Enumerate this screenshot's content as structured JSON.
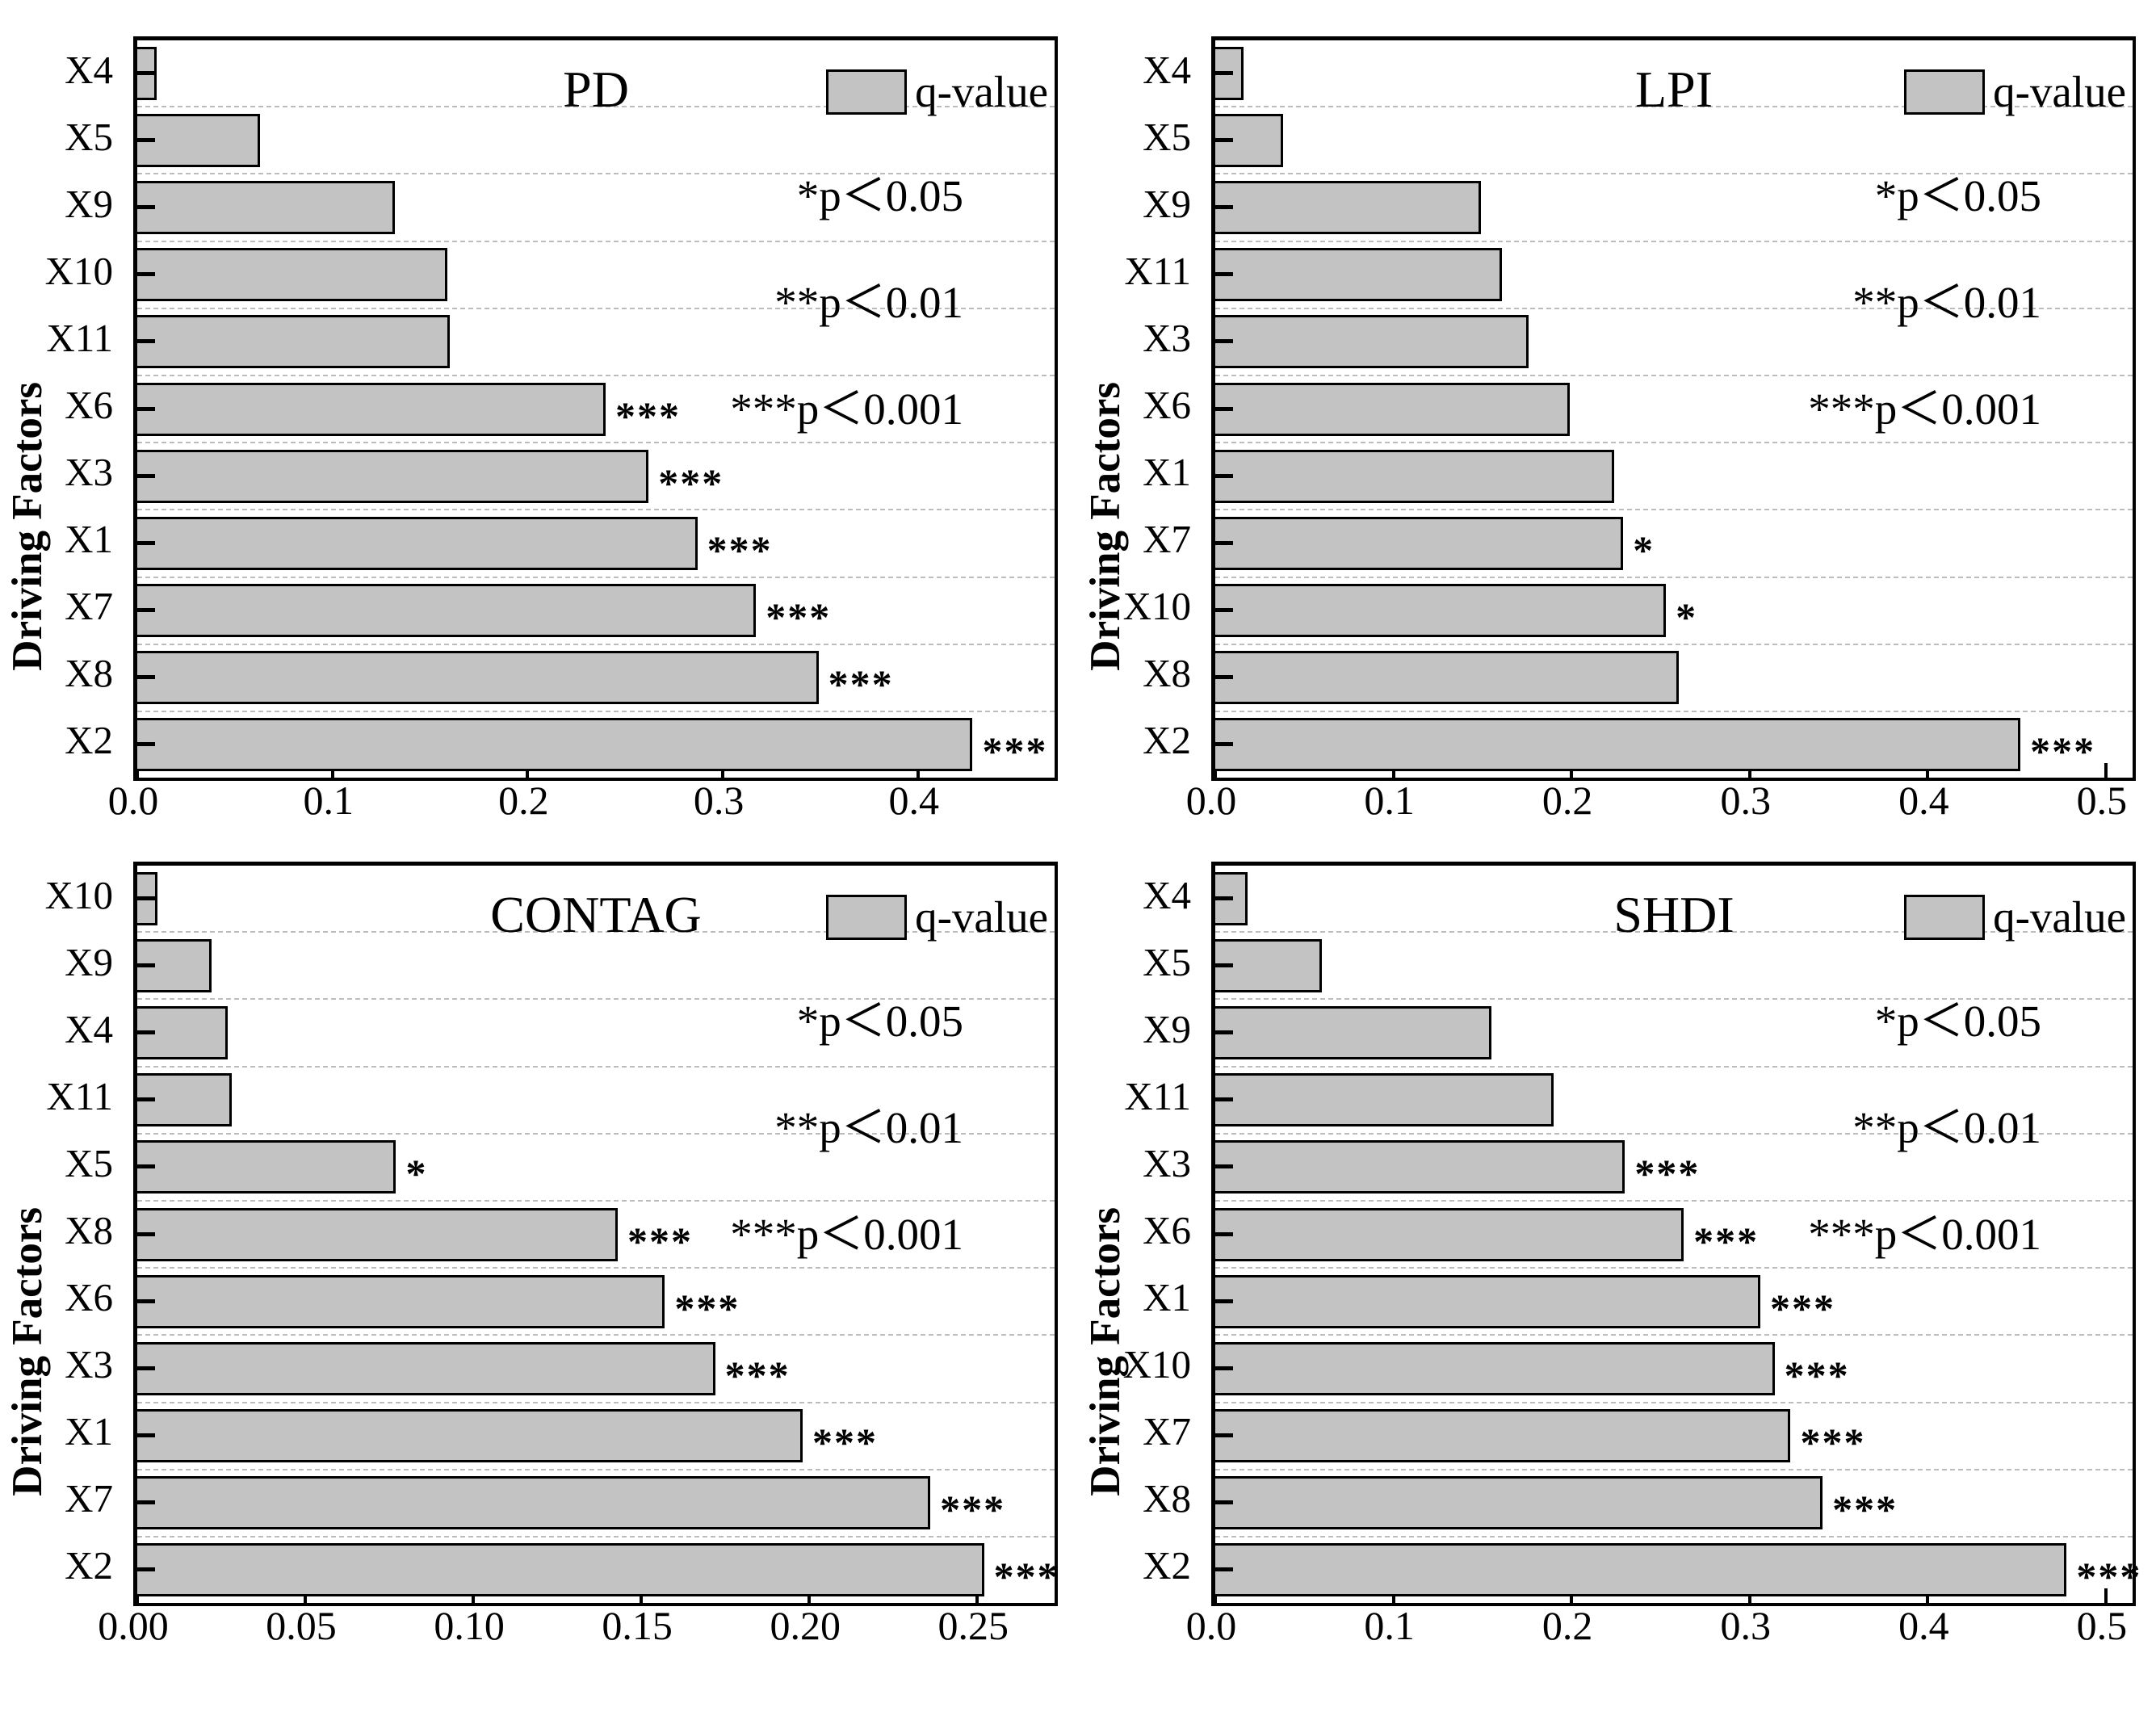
{
  "figure": {
    "y_axis_title": "Driving Factors",
    "legend": {
      "swatch_label": "q-value",
      "sig_levels": [
        "*p＜0.05",
        "**p＜0.01",
        "***p＜0.001"
      ]
    },
    "colors": {
      "bar_fill": "#c3c3c3",
      "bar_border": "#000000",
      "gridline": "#bcbcbc",
      "background": "#ffffff",
      "text": "#000000"
    }
  },
  "chart_data": [
    {
      "type": "bar",
      "orientation": "horizontal",
      "title": "PD",
      "ylabel": "Driving Factors",
      "legend_entry": "q-value",
      "grid": "dashed horizontal at category boundaries",
      "categories": [
        "X4",
        "X5",
        "X9",
        "X10",
        "X11",
        "X6",
        "X3",
        "X1",
        "X7",
        "X8",
        "X2"
      ],
      "values": [
        0.01,
        0.063,
        0.132,
        0.159,
        0.16,
        0.24,
        0.262,
        0.287,
        0.317,
        0.349,
        0.428
      ],
      "significance": [
        "",
        "",
        "",
        "",
        "",
        "***",
        "***",
        "***",
        "***",
        "***",
        "***"
      ],
      "xlim": [
        0,
        0.47
      ],
      "xticks": [
        0.0,
        0.1,
        0.2,
        0.3,
        0.4
      ],
      "xtick_labels": [
        "0.0",
        "0.1",
        "0.2",
        "0.3",
        "0.4"
      ]
    },
    {
      "type": "bar",
      "orientation": "horizontal",
      "title": "LPI",
      "ylabel": "Driving Factors",
      "legend_entry": "q-value",
      "grid": "dashed horizontal at category boundaries",
      "categories": [
        "X4",
        "X5",
        "X9",
        "X11",
        "X3",
        "X6",
        "X1",
        "X7",
        "X10",
        "X8",
        "X2"
      ],
      "values": [
        0.016,
        0.038,
        0.149,
        0.161,
        0.176,
        0.199,
        0.224,
        0.229,
        0.253,
        0.26,
        0.452
      ],
      "significance": [
        "",
        "",
        "",
        "",
        "",
        "",
        "",
        "*",
        "*",
        "",
        "***"
      ],
      "xlim": [
        0,
        0.515
      ],
      "xticks": [
        0.0,
        0.1,
        0.2,
        0.3,
        0.4,
        0.5
      ],
      "xtick_labels": [
        "0.0",
        "0.1",
        "0.2",
        "0.3",
        "0.4",
        "0.5"
      ]
    },
    {
      "type": "bar",
      "orientation": "horizontal",
      "title": "CONTAG",
      "ylabel": "Driving Factors",
      "legend_entry": "q-value",
      "grid": "dashed horizontal at category boundaries",
      "categories": [
        "X10",
        "X9",
        "X4",
        "X11",
        "X5",
        "X8",
        "X6",
        "X3",
        "X1",
        "X7",
        "X2"
      ],
      "values": [
        0.006,
        0.022,
        0.027,
        0.028,
        0.077,
        0.143,
        0.157,
        0.172,
        0.198,
        0.236,
        0.252
      ],
      "significance": [
        "",
        "",
        "",
        "",
        "*",
        "***",
        "***",
        "***",
        "***",
        "***",
        "***"
      ],
      "xlim": [
        0,
        0.273
      ],
      "xticks": [
        0.0,
        0.05,
        0.1,
        0.15,
        0.2,
        0.25
      ],
      "xtick_labels": [
        "0.00",
        "0.05",
        "0.10",
        "0.15",
        "0.20",
        "0.25"
      ]
    },
    {
      "type": "bar",
      "orientation": "horizontal",
      "title": "SHDI",
      "ylabel": "Driving Factors",
      "legend_entry": "q-value",
      "grid": "dashed horizontal at category boundaries",
      "categories": [
        "X4",
        "X5",
        "X9",
        "X11",
        "X3",
        "X6",
        "X1",
        "X10",
        "X7",
        "X8",
        "X2"
      ],
      "values": [
        0.018,
        0.06,
        0.155,
        0.19,
        0.23,
        0.263,
        0.306,
        0.314,
        0.323,
        0.341,
        0.478
      ],
      "significance": [
        "",
        "",
        "",
        "",
        "***",
        "***",
        "***",
        "***",
        "***",
        "***",
        "***"
      ],
      "xlim": [
        0,
        0.515
      ],
      "xticks": [
        0.0,
        0.1,
        0.2,
        0.3,
        0.4,
        0.5
      ],
      "xtick_labels": [
        "0.0",
        "0.1",
        "0.2",
        "0.3",
        "0.4",
        "0.5"
      ]
    }
  ]
}
